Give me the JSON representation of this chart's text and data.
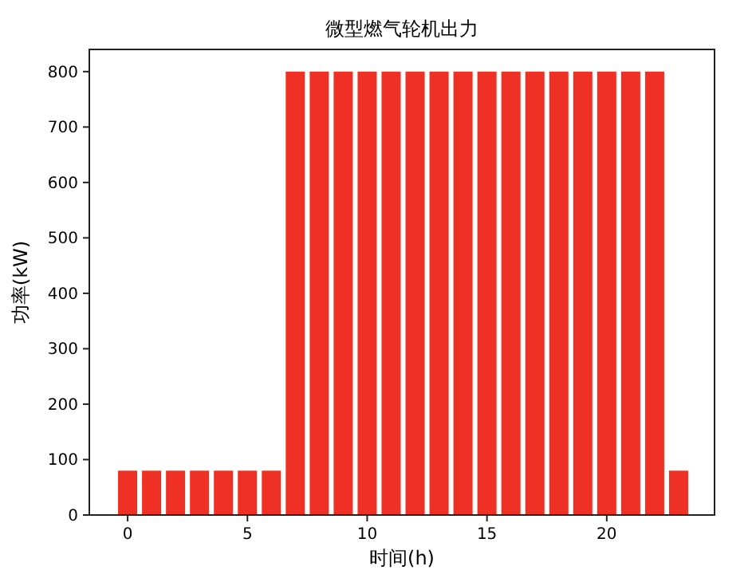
{
  "chart_data": {
    "type": "bar",
    "title": "微型燃气轮机出力",
    "xlabel": "时间(h)",
    "ylabel": "功率(kW)",
    "x": [
      0,
      1,
      2,
      3,
      4,
      5,
      6,
      7,
      8,
      9,
      10,
      11,
      12,
      13,
      14,
      15,
      16,
      17,
      18,
      19,
      20,
      21,
      22,
      23
    ],
    "values": [
      80,
      80,
      80,
      80,
      80,
      80,
      80,
      800,
      800,
      800,
      800,
      800,
      800,
      800,
      800,
      800,
      800,
      800,
      800,
      800,
      800,
      800,
      800,
      80
    ],
    "color": "#ee3124",
    "xlim": [
      -1.6,
      24.5
    ],
    "xticks": [
      0,
      5,
      10,
      15,
      20
    ],
    "ylim": [
      0,
      840
    ],
    "yticks": [
      0,
      100,
      200,
      300,
      400,
      500,
      600,
      700,
      800
    ],
    "grid": false
  }
}
